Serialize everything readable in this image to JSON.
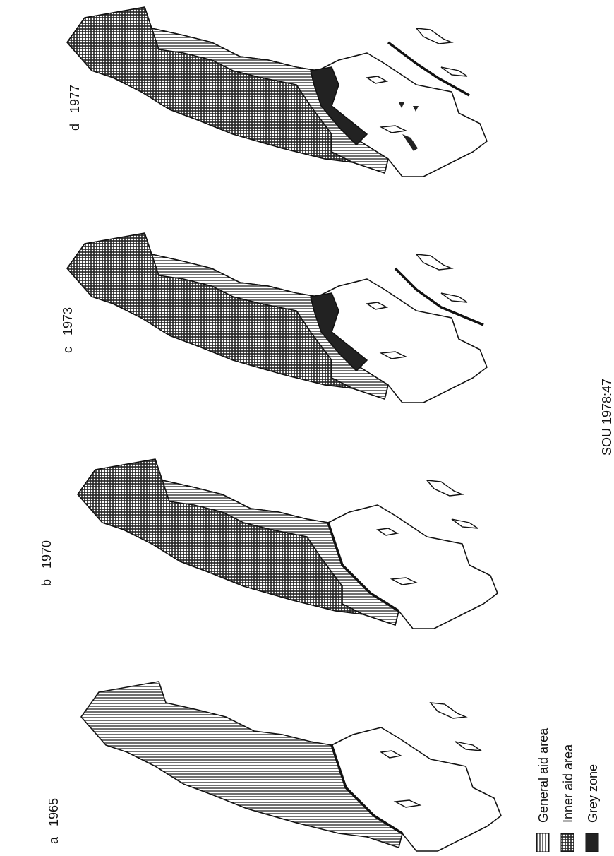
{
  "panels": [
    {
      "letter": "a",
      "year": "1965"
    },
    {
      "letter": "b",
      "year": "1970"
    },
    {
      "letter": "c",
      "year": "1973"
    },
    {
      "letter": "d",
      "year": "1977"
    }
  ],
  "legend": [
    "General aid area",
    "Inner aid area",
    "Grey zone"
  ],
  "source": "SOU 1978:47"
}
